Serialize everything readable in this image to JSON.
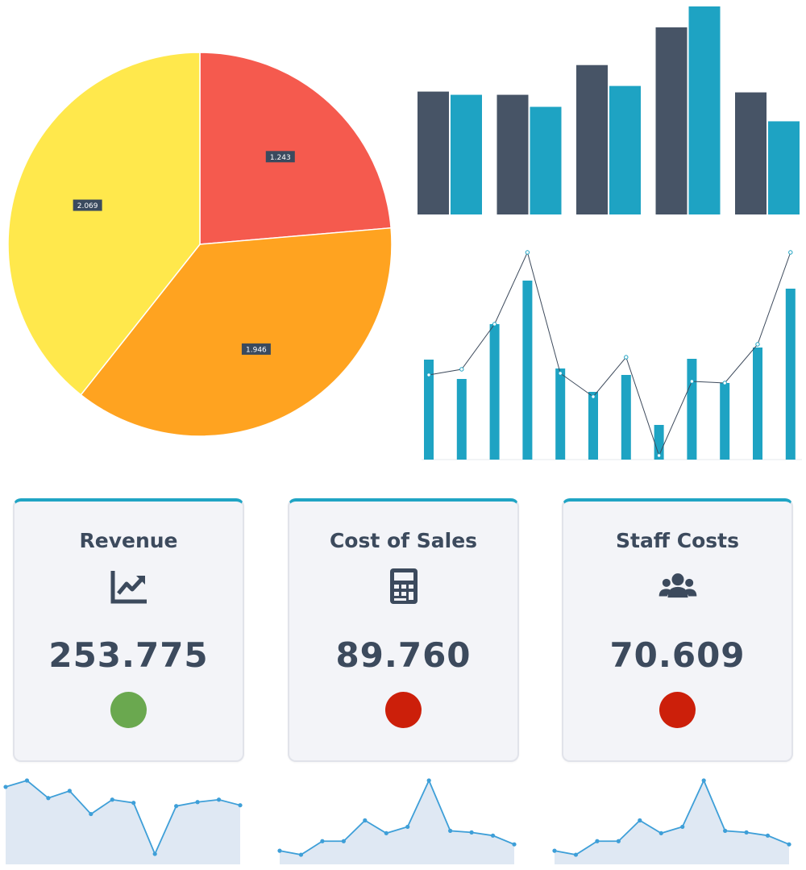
{
  "colors": {
    "pie": [
      "#f55a4e",
      "#ffa320",
      "#ffe84c"
    ],
    "bar_dark": "#475466",
    "bar_teal": "#1ea3c3",
    "line": "#3d4a5c",
    "spark_line": "#3e9fd8",
    "spark_fill": "#dfe8f3",
    "good": "#6aa84f",
    "bad": "#cc1f0a"
  },
  "chart_data": [
    {
      "type": "pie",
      "values": [
        1.243,
        1.946,
        2.069
      ],
      "labels": [
        "1.243",
        "1.946",
        "2.069"
      ]
    },
    {
      "type": "bar",
      "series": [
        {
          "values": [
            153,
            149,
            186,
            233,
            152
          ]
        },
        {
          "values": [
            149,
            134,
            160,
            259,
            116
          ]
        }
      ],
      "ylim": [
        0,
        262
      ]
    },
    {
      "type": "bar",
      "combo_line": true,
      "bars": [
        124,
        100,
        168,
        222,
        113,
        84,
        105,
        43,
        125,
        95,
        139,
        212
      ],
      "line": [
        105,
        112,
        168,
        257,
        107,
        78,
        127,
        5,
        97,
        95,
        143,
        257
      ],
      "ylim": [
        0,
        262
      ]
    },
    {
      "type": "area",
      "title": "Revenue",
      "values": [
        92,
        100,
        78,
        87,
        58,
        76,
        72,
        8,
        68,
        73,
        76,
        69
      ],
      "ylim": [
        0,
        100
      ]
    },
    {
      "type": "area",
      "title": "Cost of Sales",
      "values": [
        12,
        7,
        24,
        24,
        50,
        34,
        42,
        100,
        37,
        35,
        31,
        20
      ],
      "ylim": [
        0,
        100
      ]
    },
    {
      "type": "area",
      "title": "Staff Costs",
      "values": [
        12,
        7,
        24,
        24,
        50,
        34,
        42,
        100,
        37,
        35,
        31,
        20
      ],
      "ylim": [
        0,
        100
      ]
    }
  ],
  "kpis": [
    {
      "title": "Revenue",
      "value": "253.775",
      "icon": "trend-up-icon",
      "status": "good"
    },
    {
      "title": "Cost of Sales",
      "value": "89.760",
      "icon": "calculator-icon",
      "status": "bad"
    },
    {
      "title": "Staff Costs",
      "value": "70.609",
      "icon": "users-icon",
      "status": "bad"
    }
  ]
}
